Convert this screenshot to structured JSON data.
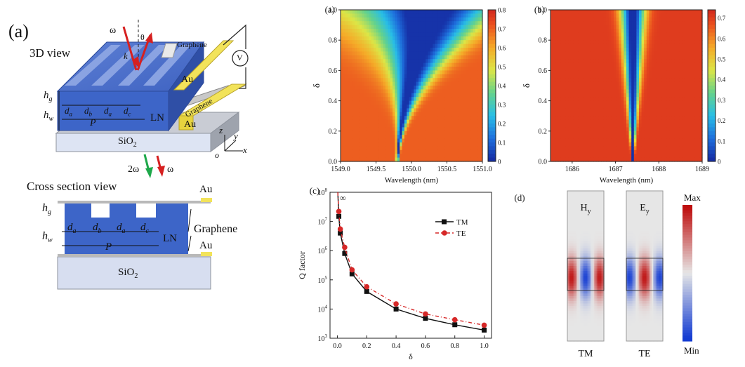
{
  "panel_a": {
    "label": "(a)",
    "view3d_label": "3D view",
    "cross_section_label": "Cross section view",
    "omega": "ω",
    "theta": "θ",
    "k": "k",
    "graphene_top": "Graphene",
    "graphene_side": "Graphene",
    "au_top": "Au",
    "au_bottom": "Au",
    "voltmeter": "V",
    "hg": "h",
    "hg_sub": "g",
    "hw": "h",
    "hw_sub": "w",
    "da": "d",
    "da_sub": "a",
    "db": "d",
    "db_sub": "b",
    "dc": "d",
    "dc_sub": "c",
    "P": "P",
    "LN": "LN",
    "SiO2": "SiO",
    "SiO2_sub": "2",
    "axis_z": "z",
    "axis_y": "y",
    "axis_x": "x",
    "axis_o": "o",
    "out_2w": "2ω",
    "out_w": "ω",
    "cs_au_top": "Au",
    "cs_graphene": "Graphene",
    "cs_au_bottom": "Au",
    "cs_LN": "LN",
    "cs_SiO2": "SiO",
    "cs_SiO2_sub": "2",
    "cs_hg": "h",
    "cs_hg_sub": "g",
    "cs_hw": "h",
    "cs_hw_sub": "w",
    "cs_da1": "d",
    "cs_da1_sub": "a",
    "cs_db": "d",
    "cs_db_sub": "b",
    "cs_da2": "d",
    "cs_da2_sub": "a",
    "cs_dc": "d",
    "cs_dc_sub": "c",
    "cs_P": "P"
  },
  "chart_data": [
    {
      "id": "a",
      "type": "heatmap",
      "panel_label": "(a)",
      "xlabel": "Wavelength (nm)",
      "ylabel": "δ",
      "xlim": [
        1549.0,
        1551.0
      ],
      "ylim": [
        0.0,
        1.0
      ],
      "x_ticks": [
        "1549.0",
        "1549.5",
        "1550.0",
        "1550.5",
        "1551.0"
      ],
      "y_ticks": [
        "0.0",
        "0.2",
        "0.4",
        "0.6",
        "0.8",
        "1.0"
      ],
      "colorbar_ticks": [
        "0",
        "0.1",
        "0.2",
        "0.3",
        "0.4",
        "0.5",
        "0.6",
        "0.7",
        "0.8"
      ],
      "resonance_start_wavelength": 1549.8,
      "resonance_start_delta": 0.0
    },
    {
      "id": "b",
      "type": "heatmap",
      "panel_label": "(b)",
      "xlabel": "Wavelength (nm)",
      "ylabel": "δ",
      "xlim": [
        1685.5,
        1689.0
      ],
      "ylim": [
        0.0,
        1.0
      ],
      "x_ticks": [
        "1686",
        "1687",
        "1688",
        "1689"
      ],
      "y_ticks": [
        "0.0",
        "0.2",
        "0.4",
        "0.6",
        "0.8",
        "1.0"
      ],
      "colorbar_ticks": [
        "0",
        "0.1",
        "0.2",
        "0.3",
        "0.4",
        "0.5",
        "0.6",
        "0.7"
      ],
      "resonance_start_wavelength": 1687.4,
      "resonance_start_delta": 0.0
    },
    {
      "id": "c",
      "type": "line",
      "panel_label": "(c)",
      "xlabel": "δ",
      "ylabel": "Q factor",
      "xlim": [
        -0.05,
        1.05
      ],
      "yscale": "log",
      "ylim": [
        1000,
        100000000
      ],
      "x_ticks": [
        "0.0",
        "0.2",
        "0.4",
        "0.6",
        "0.8",
        "1.0"
      ],
      "y_ticks": [
        {
          "base": "10",
          "exp": "3"
        },
        {
          "base": "10",
          "exp": "4"
        },
        {
          "base": "10",
          "exp": "5"
        },
        {
          "base": "10",
          "exp": "6"
        },
        {
          "base": "10",
          "exp": "7"
        },
        {
          "base": "10",
          "exp": "8"
        }
      ],
      "infinity_label": "∞",
      "legend_position": "top-right",
      "series": [
        {
          "name": "TM",
          "color": "#111111",
          "x": [
            0.01,
            0.02,
            0.05,
            0.1,
            0.2,
            0.4,
            0.6,
            0.8,
            1.0
          ],
          "y": [
            15000000,
            4000000,
            800000,
            160000,
            40000,
            10000,
            4800,
            2900,
            1900
          ]
        },
        {
          "name": "TE",
          "color": "#d62828",
          "x": [
            0.01,
            0.02,
            0.05,
            0.1,
            0.2,
            0.4,
            0.6,
            0.8,
            1.0
          ],
          "y": [
            22000000,
            5500000,
            1300000,
            220000,
            58000,
            15000,
            6800,
            4300,
            2800
          ]
        }
      ]
    },
    {
      "id": "d",
      "type": "heatmap",
      "panel_label": "(d)",
      "fields": [
        {
          "name": "H",
          "sub": "y",
          "caption": "TM"
        },
        {
          "name": "E",
          "sub": "y",
          "caption": "TE"
        }
      ],
      "colorbar_max": "Max",
      "colorbar_min": "Min"
    }
  ]
}
